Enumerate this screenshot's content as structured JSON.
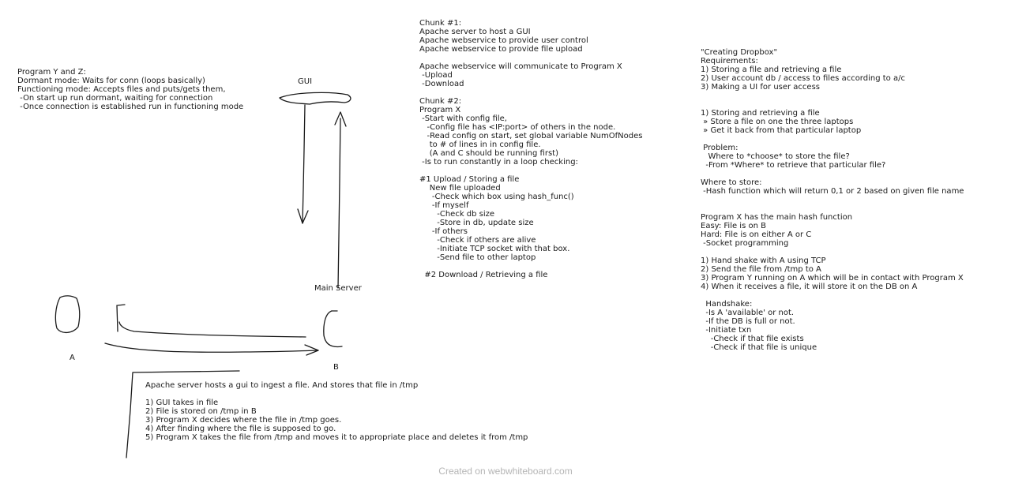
{
  "notes": {
    "program_yz": [
      "Program Y and Z:",
      "Dormant mode: Waits for conn (loops basically)",
      "Functioning mode: Accepts files and puts/gets them,",
      " -On start up run dormant, waiting for connection",
      " -Once connection is established run in functioning mode"
    ],
    "chunks": [
      "Chunk #1:",
      "Apache server to host a GUI",
      "Apache webservice to provide user control",
      "Apache webservice to provide file upload",
      "",
      "Apache webservice will communicate to Program X",
      " -Upload",
      " -Download",
      "",
      "Chunk #2:",
      "Program X",
      " -Start with config file,",
      "   -Config file has <IP:port> of others in the node.",
      "   -Read config on start, set global variable NumOfNodes",
      "    to # of lines in in config file.",
      "    (A and C should be running first)",
      " -Is to run constantly in a loop checking:",
      "",
      "#1 Upload / Storing a file",
      "    New file uploaded",
      "     -Check which box using hash_func()",
      "     -If myself",
      "       -Check db size",
      "       -Store in db, update size",
      "     -If others",
      "       -Check if others are alive",
      "       -Initiate TCP socket with that box.",
      "       -Send file to other laptop",
      "",
      "  #2 Download / Retrieving a file"
    ],
    "dropbox": [
      "\"Creating Dropbox\"",
      "Requirements:",
      "1) Storing a file and retrieving a file",
      "2) User account db / access to files according to a/c",
      "3) Making a UI for user access",
      "",
      "",
      "1) Storing and retrieving a file",
      " » Store a file on one the three laptops",
      " » Get it back from that particular laptop",
      "",
      " Problem:",
      "   Where to *choose* to store the file?",
      "  -From *Where* to retrieve that particular file?",
      "",
      "Where to store:",
      " -Hash function which will return 0,1 or 2 based on given file name",
      "",
      "",
      "Program X has the main hash function",
      "Easy: File is on B",
      "Hard: File is on either A or C",
      " -Socket programming",
      "",
      "1) Hand shake with A using TCP",
      "2) Send the file from /tmp to A",
      "3) Program Y running on A which will be in contact with Program X",
      "4) When it receives a file, it will store it on the DB on A",
      "",
      "  Handshake:",
      "  -Is A 'available' or not.",
      "  -If the DB is full or not.",
      "  -Initiate txn",
      "    -Check if that file exists",
      "    -Check if that file is unique"
    ],
    "apache_flow": [
      "Apache server hosts a gui to ingest a file. And stores that file in /tmp",
      "",
      "1) GUI takes in file",
      "2) File is stored on /tmp in B",
      "3) Program X decides where the file in /tmp goes.",
      "4) After finding where the file is supposed to go.",
      "5) Program X takes the file from /tmp and moves it to appropriate place and deletes it from /tmp"
    ]
  },
  "labels": {
    "gui": "GUI",
    "main_server": "Main Server",
    "a": "A",
    "b": "B"
  },
  "footer": "Created on webwhiteboard.com",
  "colors": {
    "ink": "#1a1a1a",
    "footer": "#b5b5b5",
    "background": "#ffffff"
  }
}
